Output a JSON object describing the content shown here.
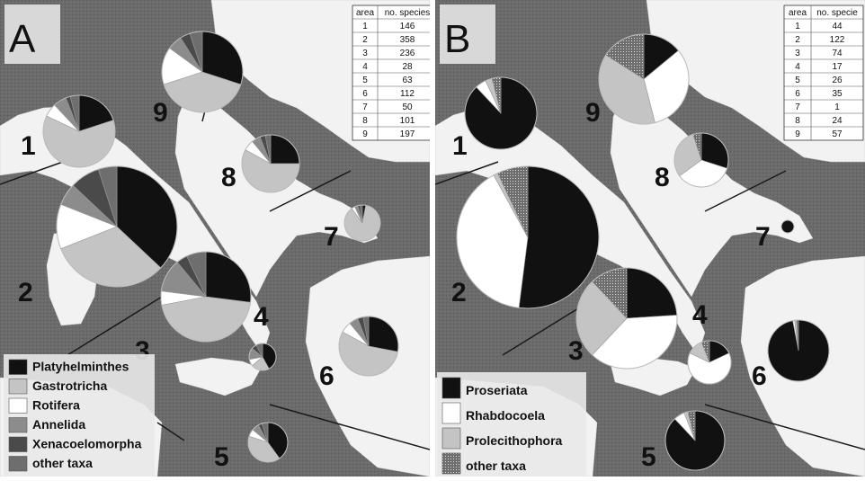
{
  "colors": {
    "sea": "#6b6b6b",
    "land": "#f2f2f2",
    "black": "#111111",
    "light_gray": "#c4c4c4",
    "white": "#ffffff",
    "mid_gray": "#8c8c8c",
    "dark_gray": "#4a4a4a",
    "other_gray": "#6e6e6e"
  },
  "panels": [
    {
      "letter": "A",
      "legend": [
        {
          "label": "Platyhelminthes",
          "color": "#111111"
        },
        {
          "label": "Gastrotricha",
          "color": "#c4c4c4"
        },
        {
          "label": "Rotifera",
          "color": "#ffffff"
        },
        {
          "label": "Annelida",
          "color": "#8c8c8c"
        },
        {
          "label": "Xenacoelomorpha",
          "color": "#4a4a4a"
        },
        {
          "label": "other taxa",
          "color": "#6e6e6e"
        }
      ],
      "table": {
        "headers": [
          "area",
          "no. species"
        ],
        "rows": [
          [
            "1",
            "146"
          ],
          [
            "2",
            "358"
          ],
          [
            "3",
            "236"
          ],
          [
            "4",
            "28"
          ],
          [
            "5",
            "63"
          ],
          [
            "6",
            "112"
          ],
          [
            "7",
            "50"
          ],
          [
            "8",
            "101"
          ],
          [
            "9",
            "197"
          ]
        ]
      },
      "areas": [
        {
          "label": "1",
          "slices": [
            0.2,
            0.62,
            0.06,
            0.06,
            0.02,
            0.04
          ]
        },
        {
          "label": "2",
          "slices": [
            0.37,
            0.32,
            0.12,
            0.06,
            0.08,
            0.05
          ]
        },
        {
          "label": "3",
          "slices": [
            0.27,
            0.45,
            0.05,
            0.12,
            0.04,
            0.07
          ]
        },
        {
          "label": "4",
          "slices": [
            0.42,
            0.22,
            0.08,
            0.14,
            0.06,
            0.08
          ]
        },
        {
          "label": "5",
          "slices": [
            0.4,
            0.4,
            0.06,
            0.06,
            0.03,
            0.05
          ]
        },
        {
          "label": "6",
          "slices": [
            0.28,
            0.55,
            0.06,
            0.05,
            0.03,
            0.03
          ]
        },
        {
          "label": "7",
          "slices": [
            0.03,
            0.87,
            0.03,
            0.03,
            0.02,
            0.02
          ]
        },
        {
          "label": "8",
          "slices": [
            0.25,
            0.58,
            0.06,
            0.05,
            0.03,
            0.03
          ]
        },
        {
          "label": "9",
          "slices": [
            0.3,
            0.4,
            0.15,
            0.06,
            0.04,
            0.05
          ]
        }
      ]
    },
    {
      "letter": "B",
      "legend": [
        {
          "label": "Proseriata",
          "color": "#111111"
        },
        {
          "label": "Rhabdocoela",
          "color": "#ffffff"
        },
        {
          "label": "Prolecithophora",
          "color": "#c4c4c4"
        },
        {
          "label": "other taxa",
          "color": "#6e6e6e"
        }
      ],
      "table": {
        "headers": [
          "area",
          "no. specie"
        ],
        "rows": [
          [
            "1",
            "44"
          ],
          [
            "2",
            "122"
          ],
          [
            "3",
            "74"
          ],
          [
            "4",
            "17"
          ],
          [
            "5",
            "26"
          ],
          [
            "6",
            "35"
          ],
          [
            "7",
            "1"
          ],
          [
            "8",
            "24"
          ],
          [
            "9",
            "57"
          ]
        ]
      },
      "areas": [
        {
          "label": "1",
          "slices": [
            0.88,
            0.05,
            0.03,
            0.04
          ]
        },
        {
          "label": "2",
          "slices": [
            0.52,
            0.4,
            0.01,
            0.07
          ]
        },
        {
          "label": "3",
          "slices": [
            0.24,
            0.38,
            0.26,
            0.12
          ]
        },
        {
          "label": "4",
          "slices": [
            0.18,
            0.64,
            0.12,
            0.06
          ]
        },
        {
          "label": "5",
          "slices": [
            0.88,
            0.06,
            0.02,
            0.04
          ]
        },
        {
          "label": "6",
          "slices": [
            0.97,
            0.01,
            0.01,
            0.01
          ]
        },
        {
          "label": "7",
          "slices": [
            1.0,
            0.0,
            0.0,
            0.0
          ]
        },
        {
          "label": "8",
          "slices": [
            0.3,
            0.35,
            0.3,
            0.05
          ]
        },
        {
          "label": "9",
          "slices": [
            0.14,
            0.32,
            0.38,
            0.16
          ]
        }
      ]
    }
  ]
}
